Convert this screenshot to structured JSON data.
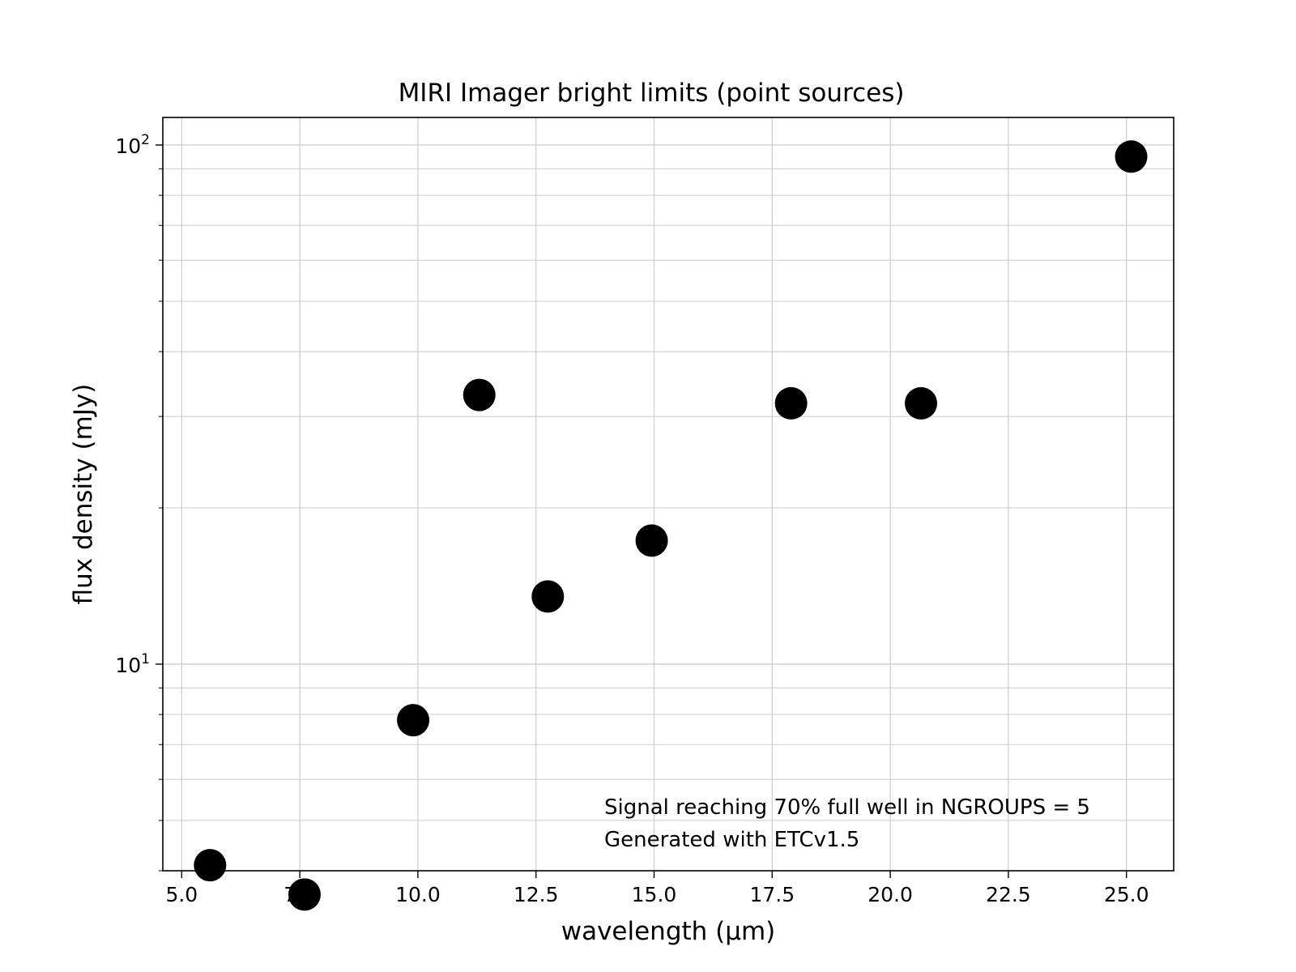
{
  "chart_data": {
    "type": "scatter",
    "title": "MIRI Imager bright limits (point sources)",
    "xlabel": "wavelength (μm)",
    "ylabel": "flux density (mJy)",
    "xlim": [
      4.6,
      26.0
    ],
    "ylim": [
      4.0,
      113
    ],
    "yscale": "log",
    "grid": true,
    "marker_color": "#000000",
    "x_ticks": [
      5.0,
      7.5,
      10.0,
      12.5,
      15.0,
      17.5,
      20.0,
      22.5,
      25.0
    ],
    "x_tick_labels": [
      "5.0",
      "7.5",
      "10.0",
      "12.5",
      "15.0",
      "17.5",
      "20.0",
      "22.5",
      "25.0"
    ],
    "y_major_ticks": [
      10,
      100
    ],
    "y_tick_labels": [
      {
        "base": "10",
        "exp": "1"
      },
      {
        "base": "10",
        "exp": "2"
      }
    ],
    "points": [
      {
        "x": 5.6,
        "y": 4.1
      },
      {
        "x": 7.6,
        "y": 3.6
      },
      {
        "x": 9.9,
        "y": 7.8
      },
      {
        "x": 11.3,
        "y": 33
      },
      {
        "x": 12.75,
        "y": 13.5
      },
      {
        "x": 14.95,
        "y": 17.3
      },
      {
        "x": 17.9,
        "y": 31.8
      },
      {
        "x": 20.65,
        "y": 31.8
      },
      {
        "x": 25.1,
        "y": 95
      }
    ],
    "annotations": [
      "Signal reaching 70% full well in NGROUPS = 5",
      "Generated with ETCv1.5"
    ]
  }
}
